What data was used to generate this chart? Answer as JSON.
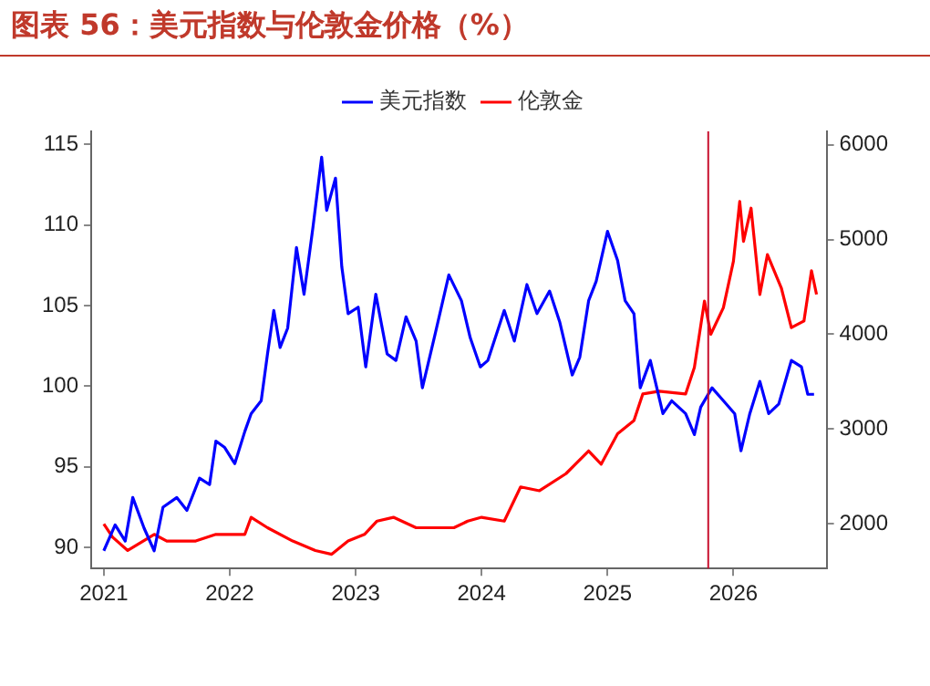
{
  "chart_data": {
    "type": "line",
    "title": "图表 56：美元指数与伦敦金价格（%）",
    "legend": "top",
    "grid": false,
    "marker": "none",
    "line_style": "solid",
    "xlim": [
      2020.9,
      2026.74
    ],
    "xticks": [
      2021,
      2022,
      2023,
      2024,
      2025,
      2026
    ],
    "ylim": [
      88.7,
      115.8
    ],
    "yticks": [
      90,
      95,
      100,
      105,
      110,
      115
    ],
    "y2lim": [
      1530,
      6140
    ],
    "y2ticks": [
      2000,
      3000,
      4000,
      5000,
      6000
    ],
    "ref_lines": [
      {
        "axis": "x",
        "value": 2025.8,
        "color": "#c8102e"
      }
    ],
    "series": [
      {
        "name": "美元指数",
        "color": "#0000ff",
        "x": [
          2021.0,
          2021.09,
          2021.17,
          2021.23,
          2021.32,
          2021.4,
          2021.47,
          2021.58,
          2021.66,
          2021.76,
          2021.84,
          2021.89,
          2021.96,
          2022.04,
          2022.12,
          2022.17,
          2022.25,
          2022.3,
          2022.35,
          2022.4,
          2022.46,
          2022.53,
          2022.59,
          2022.66,
          2022.73,
          2022.77,
          2022.84,
          2022.89,
          2022.94,
          2023.02,
          2023.08,
          2023.16,
          2023.25,
          2023.32,
          2023.4,
          2023.48,
          2023.53,
          2023.63,
          2023.74,
          2023.84,
          2023.91,
          2023.99,
          2024.05,
          2024.18,
          2024.26,
          2024.36,
          2024.44,
          2024.54,
          2024.62,
          2024.72,
          2024.78,
          2024.85,
          2024.91,
          2025.0,
          2025.08,
          2025.14,
          2025.21,
          2025.26,
          2025.34,
          2025.44,
          2025.51,
          2025.62,
          2025.69,
          2025.74,
          2025.83,
          2025.92,
          2026.01,
          2026.06,
          2026.13,
          2026.21,
          2026.28,
          2026.36,
          2026.46,
          2026.54,
          2026.59,
          2026.64
        ],
        "values": [
          89.8,
          91.4,
          90.4,
          93.1,
          91.2,
          89.8,
          92.5,
          93.1,
          92.3,
          94.3,
          93.9,
          96.6,
          96.2,
          95.2,
          97.2,
          98.3,
          99.1,
          102.0,
          104.7,
          102.4,
          103.6,
          108.6,
          105.7,
          109.8,
          114.2,
          110.9,
          112.9,
          107.4,
          104.5,
          104.9,
          101.2,
          105.7,
          102.0,
          101.6,
          104.3,
          102.8,
          99.9,
          103.2,
          106.9,
          105.3,
          103.0,
          101.2,
          101.6,
          104.7,
          102.8,
          106.3,
          104.5,
          105.9,
          104.0,
          100.7,
          101.8,
          105.3,
          106.5,
          109.6,
          107.8,
          105.3,
          104.5,
          99.9,
          101.6,
          98.3,
          99.1,
          98.3,
          97.0,
          98.7,
          99.9,
          99.1,
          98.3,
          96.0,
          98.3,
          100.3,
          98.3,
          98.9,
          101.6,
          101.2,
          99.5,
          99.5
        ]
      },
      {
        "name": "伦敦金",
        "color": "#ff0000",
        "axis": "y2",
        "x": [
          2021.0,
          2021.07,
          2021.19,
          2021.4,
          2021.5,
          2021.73,
          2021.89,
          2022.12,
          2022.17,
          2022.3,
          2022.5,
          2022.68,
          2022.81,
          2022.94,
          2023.07,
          2023.17,
          2023.3,
          2023.48,
          2023.68,
          2023.78,
          2023.89,
          2024.0,
          2024.18,
          2024.31,
          2024.46,
          2024.67,
          2024.85,
          2024.95,
          2025.08,
          2025.21,
          2025.28,
          2025.41,
          2025.62,
          2025.69,
          2025.77,
          2025.82,
          2025.92,
          2026.0,
          2026.05,
          2026.08,
          2026.14,
          2026.21,
          2026.27,
          2026.38,
          2026.46,
          2026.56,
          2026.62,
          2026.66
        ],
        "values": [
          2000,
          1860,
          1720,
          1890,
          1820,
          1820,
          1890,
          1890,
          2070,
          1960,
          1820,
          1720,
          1680,
          1820,
          1890,
          2030,
          2070,
          1960,
          1960,
          1960,
          2030,
          2070,
          2030,
          2390,
          2350,
          2530,
          2770,
          2630,
          2950,
          3090,
          3370,
          3400,
          3370,
          3650,
          4350,
          4000,
          4280,
          4770,
          5400,
          4980,
          5330,
          4420,
          4840,
          4490,
          4070,
          4140,
          4670,
          4420
        ]
      }
    ]
  }
}
